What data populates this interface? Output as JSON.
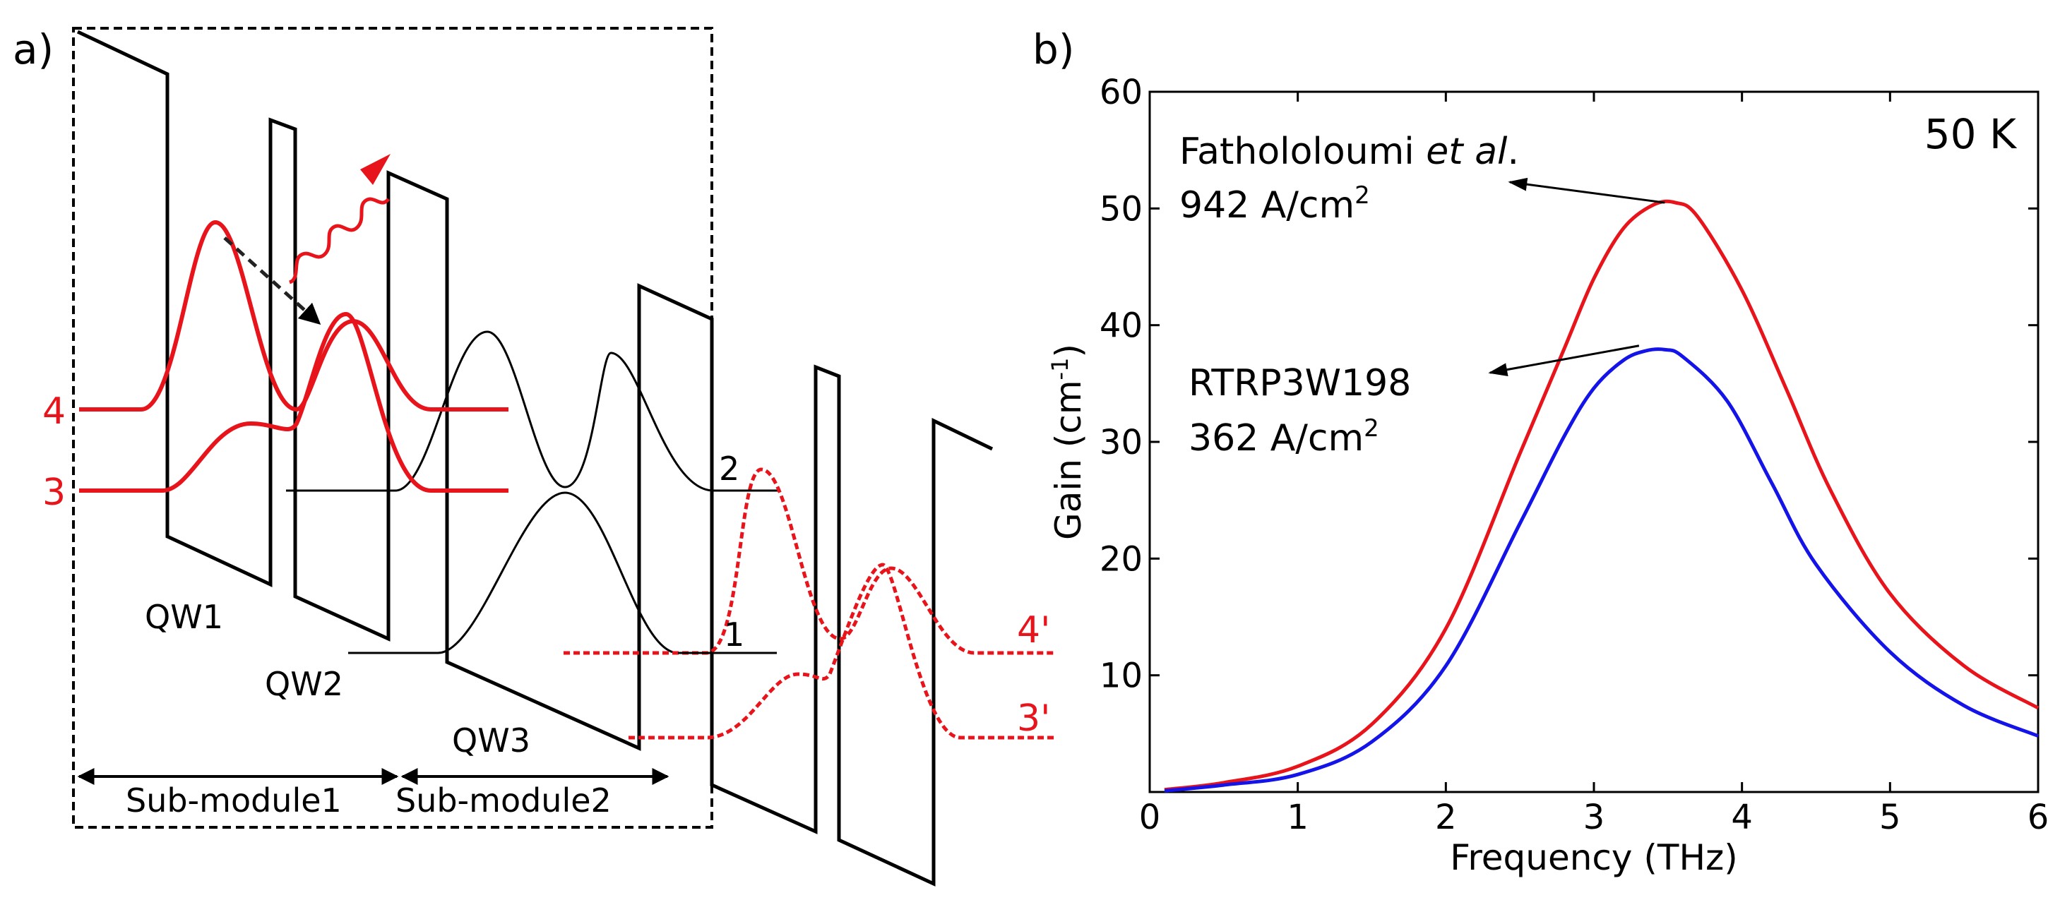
{
  "panel_a": {
    "label": "a)",
    "level_labels": {
      "l4": "4",
      "l3": "3",
      "l2": "2",
      "l1": "1",
      "l4p": "4'",
      "l3p": "3'"
    },
    "well_labels": {
      "qw1": "QW1",
      "qw2": "QW2",
      "qw3": "QW3"
    },
    "submodules": {
      "sm1": "Sub-module1",
      "sm2": "Sub-module2"
    },
    "colors": {
      "structure": "#000000",
      "states": "#e8141b",
      "box": "#000000"
    }
  },
  "panel_b": {
    "label": "b)",
    "temperature": "50 K",
    "annotations": {
      "a1_name": "Fathololoumi ",
      "a1_italic": "et al",
      "a1_suffix": ".",
      "a1_current": "942 A/cm",
      "a1_sup": "2",
      "a2_name": "RTRP3W198",
      "a2_current": "362 A/cm",
      "a2_sup": "2"
    },
    "ylabel": {
      "main": "Gain (cm",
      "sup": "-1",
      "close": ")"
    }
  },
  "chart_data": {
    "type": "line",
    "title": "",
    "xlabel": "Frequency (THz)",
    "ylabel": "Gain (cm-1)",
    "xlim": [
      0,
      6
    ],
    "ylim": [
      0,
      60
    ],
    "xticks": [
      0,
      1,
      2,
      3,
      4,
      5,
      6
    ],
    "yticks": [
      10,
      20,
      30,
      40,
      50,
      60
    ],
    "grid": false,
    "series": [
      {
        "name": "Fathololoumi et al. 942 A/cm2",
        "color": "#e8141b",
        "x": [
          0.1,
          0.5,
          1.0,
          1.5,
          2.0,
          2.5,
          2.8,
          3.0,
          3.2,
          3.4,
          3.55,
          3.7,
          4.0,
          4.3,
          4.6,
          5.0,
          5.5,
          6.0
        ],
        "y": [
          0.2,
          0.8,
          2.2,
          5.8,
          14.0,
          29.0,
          38.0,
          44.0,
          48.3,
          50.3,
          50.5,
          49.3,
          43.0,
          34.5,
          25.8,
          17.0,
          10.8,
          7.2
        ]
      },
      {
        "name": "RTRP3W198 362 A/cm2",
        "color": "#1414e8",
        "x": [
          0.1,
          0.5,
          1.0,
          1.5,
          2.0,
          2.5,
          2.8,
          3.0,
          3.2,
          3.35,
          3.48,
          3.6,
          3.9,
          4.2,
          4.5,
          5.0,
          5.5,
          6.0
        ],
        "y": [
          0.1,
          0.6,
          1.5,
          4.3,
          10.8,
          23.0,
          30.5,
          34.6,
          37.0,
          37.8,
          37.9,
          37.3,
          33.5,
          26.5,
          19.5,
          12.0,
          7.4,
          4.8
        ]
      }
    ],
    "annotations": [
      {
        "text": "Fathololoumi et al. 942 A/cm2",
        "points_to": [
          3.55,
          50.5
        ]
      },
      {
        "text": "RTRP3W198 362 A/cm2",
        "points_to": [
          3.4,
          38.0
        ]
      },
      {
        "text": "50 K",
        "position": "top-right"
      }
    ]
  }
}
